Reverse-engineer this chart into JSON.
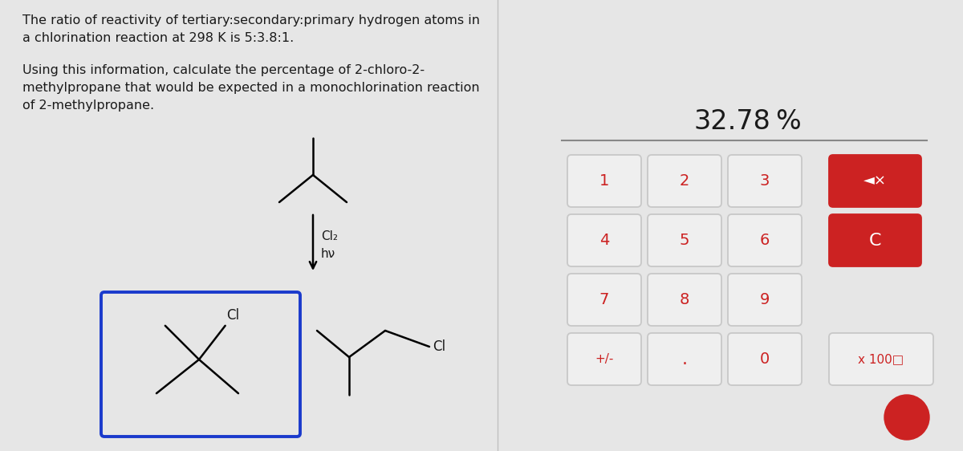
{
  "bg_color": "#e6e6e6",
  "text_color": "#1a1a1a",
  "title_line1": "The ratio of reactivity of tertiary:secondary:primary hydrogen atoms in",
  "title_line2": "a chlorination reaction at 298 K is 5:3.8:1.",
  "subtitle_line1": "Using this information, calculate the percentage of 2-chloro-2-",
  "subtitle_line2": "methylpropane that would be expected in a monochlorination reaction",
  "subtitle_line3": "of 2-methylpropane.",
  "display_value": "32.78",
  "display_unit": "%",
  "button_bg": "#efefef",
  "button_border": "#c8c8c8",
  "button_text_color": "#cc2222",
  "red_button_bg": "#cc2222",
  "red_button_text": "#ffffff",
  "buttons_row1": [
    "1",
    "2",
    "3"
  ],
  "buttons_row2": [
    "4",
    "5",
    "6"
  ],
  "buttons_row3": [
    "7",
    "8",
    "9"
  ],
  "buttons_row4": [
    "+/-",
    ".",
    "0"
  ],
  "special_btn1": "◄×",
  "special_btn2": "C",
  "special_btn3": "x 100□",
  "divider_color": "#555555",
  "blue_box_color": "#1a3acc"
}
